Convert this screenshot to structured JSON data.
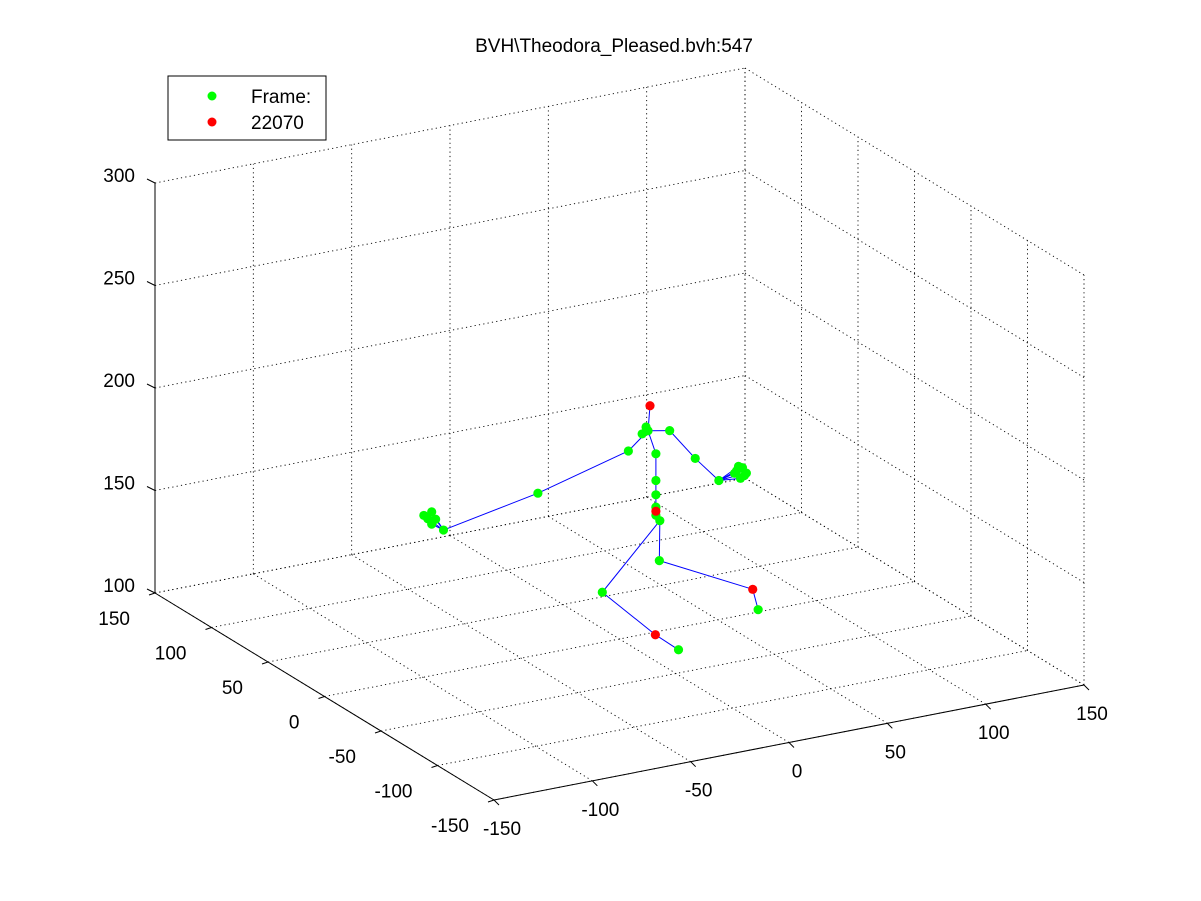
{
  "chart_data": {
    "type": "scatter",
    "title": "BVH\\Theodora_Pleased.bvh:547",
    "legend": {
      "placement": "top-left",
      "entries": [
        {
          "label": "Frame:",
          "color": "#00ff00"
        },
        {
          "label": "22070",
          "color": "#ff0000"
        }
      ]
    },
    "grid": true,
    "xlim": [
      -150,
      150
    ],
    "ylim": [
      -150,
      150
    ],
    "zlim": [
      100,
      300
    ],
    "x_ticks": [
      "-150",
      "-100",
      "-50",
      "0",
      "50",
      "100",
      "150"
    ],
    "y_ticks": [
      "-150",
      "-100",
      "-50",
      "0",
      "50",
      "100",
      "150"
    ],
    "z_ticks": [
      "100",
      "150",
      "200",
      "250",
      "300"
    ],
    "series": [
      {
        "name": "Frame:",
        "color": "#00ff00",
        "points": [
          {
            "id": "hips",
            "x": 30,
            "y": 20,
            "z": 148
          },
          {
            "id": "spine1",
            "x": 30,
            "y": 20,
            "z": 152
          },
          {
            "id": "spine2",
            "x": 30,
            "y": 20,
            "z": 158
          },
          {
            "id": "spine3",
            "x": 30,
            "y": 20,
            "z": 165
          },
          {
            "id": "neck",
            "x": 30,
            "y": 20,
            "z": 178
          },
          {
            "id": "head-base",
            "x": 26,
            "y": 20,
            "z": 190
          },
          {
            "id": "head-a",
            "x": 25,
            "y": 20,
            "z": 192
          },
          {
            "id": "head-b",
            "x": 23,
            "y": 20,
            "z": 189
          },
          {
            "id": "l-clavicle",
            "x": 16,
            "y": 20,
            "z": 182
          },
          {
            "id": "l-elbow",
            "x": -30,
            "y": 20,
            "z": 170
          },
          {
            "id": "l-wrist",
            "x": -78,
            "y": 20,
            "z": 161
          },
          {
            "id": "l-hand-a",
            "x": -84,
            "y": 20,
            "z": 165
          },
          {
            "id": "l-hand-b",
            "x": -86,
            "y": 20,
            "z": 168
          },
          {
            "id": "l-hand-c",
            "x": -84,
            "y": 20,
            "z": 171
          },
          {
            "id": "l-hand-d",
            "x": -88,
            "y": 20,
            "z": 170
          },
          {
            "id": "l-hand-e",
            "x": -82,
            "y": 20,
            "z": 167
          },
          {
            "id": "r-clavicle",
            "x": 37,
            "y": 20,
            "z": 188
          },
          {
            "id": "r-elbow",
            "x": 50,
            "y": 20,
            "z": 172
          },
          {
            "id": "r-wrist",
            "x": 62,
            "y": 20,
            "z": 159
          },
          {
            "id": "r-hand-a",
            "x": 70,
            "y": 20,
            "z": 161
          },
          {
            "id": "r-hand-b",
            "x": 74,
            "y": 20,
            "z": 163
          },
          {
            "id": "r-hand-c",
            "x": 76,
            "y": 20,
            "z": 160
          },
          {
            "id": "r-hand-d",
            "x": 73,
            "y": 20,
            "z": 158
          },
          {
            "id": "r-hand-e",
            "x": 72,
            "y": 20,
            "z": 164
          },
          {
            "id": "r-hand-f",
            "x": 75,
            "y": 20,
            "z": 159
          },
          {
            "id": "r-hand-g",
            "x": 71,
            "y": 20,
            "z": 162
          },
          {
            "id": "l-upleg",
            "x": 32,
            "y": 20,
            "z": 145
          },
          {
            "id": "l-knee",
            "x": -3,
            "y": 10,
            "z": 120
          },
          {
            "id": "l-toe",
            "x": 3,
            "y": -47,
            "z": 110
          },
          {
            "id": "r-knee",
            "x": 26,
            "y": 10,
            "z": 130
          },
          {
            "id": "r-toe",
            "x": 59,
            "y": -20,
            "z": 110
          }
        ]
      },
      {
        "name": "22070",
        "color": "#ff0000",
        "points": [
          {
            "id": "head-top",
            "x": 27,
            "y": 20,
            "z": 202
          },
          {
            "id": "pelvis",
            "x": 30,
            "y": 20,
            "z": 150
          },
          {
            "id": "l-ankle",
            "x": 1,
            "y": -30,
            "z": 112
          },
          {
            "id": "r-ankle",
            "x": 62,
            "y": -10,
            "z": 116
          }
        ]
      }
    ],
    "bones": [
      [
        "hips",
        "spine1"
      ],
      [
        "spine1",
        "spine2"
      ],
      [
        "spine2",
        "spine3"
      ],
      [
        "spine3",
        "neck"
      ],
      [
        "neck",
        "head-base"
      ],
      [
        "head-base",
        "head-a"
      ],
      [
        "head-a",
        "head-b"
      ],
      [
        "head-base",
        "head-top"
      ],
      [
        "head-base",
        "l-clavicle"
      ],
      [
        "l-clavicle",
        "l-elbow"
      ],
      [
        "l-elbow",
        "l-wrist"
      ],
      [
        "l-wrist",
        "l-hand-a"
      ],
      [
        "l-wrist",
        "l-hand-b"
      ],
      [
        "l-wrist",
        "l-hand-c"
      ],
      [
        "l-wrist",
        "l-hand-e"
      ],
      [
        "head-base",
        "r-clavicle"
      ],
      [
        "r-clavicle",
        "r-elbow"
      ],
      [
        "r-elbow",
        "r-wrist"
      ],
      [
        "r-wrist",
        "r-hand-a"
      ],
      [
        "r-wrist",
        "r-hand-b"
      ],
      [
        "r-wrist",
        "r-hand-c"
      ],
      [
        "r-wrist",
        "r-hand-d"
      ],
      [
        "r-wrist",
        "r-hand-e"
      ],
      [
        "hips",
        "pelvis"
      ],
      [
        "pelvis",
        "l-upleg"
      ],
      [
        "l-upleg",
        "l-knee"
      ],
      [
        "l-knee",
        "l-ankle"
      ],
      [
        "l-ankle",
        "l-toe"
      ],
      [
        "l-upleg",
        "r-knee"
      ],
      [
        "r-knee",
        "r-ankle"
      ],
      [
        "r-ankle",
        "r-toe"
      ]
    ]
  }
}
